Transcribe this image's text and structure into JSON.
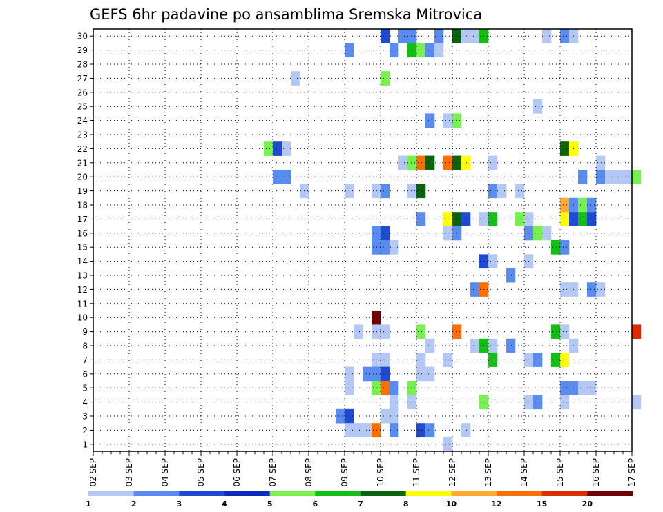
{
  "chart_data": {
    "type": "heatmap",
    "title": "GEFS 6hr padavine po ansamblima Sremska Mitrovica",
    "xlabel": "",
    "ylabel": "",
    "x_tick_labels": [
      "02 SEP",
      "03 SEP",
      "04 SEP",
      "05 SEP",
      "06 SEP",
      "07 SEP",
      "08 SEP",
      "09 SEP",
      "10 SEP",
      "11 SEP",
      "12 SEP",
      "13 SEP",
      "14 SEP",
      "15 SEP",
      "16 SEP",
      "17 SEP"
    ],
    "y_tick_labels": [
      "1",
      "2",
      "3",
      "4",
      "5",
      "6",
      "7",
      "8",
      "9",
      "10",
      "11",
      "12",
      "13",
      "14",
      "15",
      "16",
      "17",
      "18",
      "19",
      "20",
      "21",
      "22",
      "23",
      "24",
      "25",
      "26",
      "27",
      "28",
      "29",
      "30"
    ],
    "members": [
      1,
      30
    ],
    "time_steps_per_day": 4,
    "grid": true,
    "legend_position": "bottom",
    "color_scale": {
      "levels": [
        "1",
        "2",
        "3",
        "4",
        "5",
        "6",
        "7",
        "8",
        "10",
        "12",
        "15",
        "20"
      ],
      "colors": [
        "#b4c8f5",
        "#5a8cf0",
        "#1e4bd2",
        "#0a2dbe",
        "#78f050",
        "#14be14",
        "#0a640a",
        "#ffff00",
        "#ffaa32",
        "#ff6e00",
        "#dc2d00",
        "#6e0000"
      ]
    },
    "cells": [
      {
        "member": 30,
        "step": 32,
        "level": 3
      },
      {
        "member": 30,
        "step": 34,
        "level": 2
      },
      {
        "member": 30,
        "step": 35,
        "level": 2
      },
      {
        "member": 30,
        "step": 38,
        "level": 2
      },
      {
        "member": 30,
        "step": 40,
        "level": 7
      },
      {
        "member": 30,
        "step": 41,
        "level": 1
      },
      {
        "member": 30,
        "step": 42,
        "level": 1
      },
      {
        "member": 30,
        "step": 43,
        "level": 6
      },
      {
        "member": 30,
        "step": 50,
        "level": 1
      },
      {
        "member": 30,
        "step": 52,
        "level": 2
      },
      {
        "member": 30,
        "step": 53,
        "level": 1
      },
      {
        "member": 29,
        "step": 28,
        "level": 2
      },
      {
        "member": 29,
        "step": 33,
        "level": 2
      },
      {
        "member": 29,
        "step": 35,
        "level": 6
      },
      {
        "member": 29,
        "step": 36,
        "level": 5
      },
      {
        "member": 29,
        "step": 37,
        "level": 2
      },
      {
        "member": 29,
        "step": 38,
        "level": 1
      },
      {
        "member": 27,
        "step": 22,
        "level": 1
      },
      {
        "member": 27,
        "step": 32,
        "level": 5
      },
      {
        "member": 25,
        "step": 49,
        "level": 1
      },
      {
        "member": 24,
        "step": 37,
        "level": 2
      },
      {
        "member": 24,
        "step": 39,
        "level": 1
      },
      {
        "member": 24,
        "step": 40,
        "level": 5
      },
      {
        "member": 22,
        "step": 19,
        "level": 5
      },
      {
        "member": 22,
        "step": 20,
        "level": 3
      },
      {
        "member": 22,
        "step": 21,
        "level": 1
      },
      {
        "member": 22,
        "step": 52,
        "level": 7
      },
      {
        "member": 22,
        "step": 53,
        "level": 8
      },
      {
        "member": 21,
        "step": 34,
        "level": 1
      },
      {
        "member": 21,
        "step": 35,
        "level": 5
      },
      {
        "member": 21,
        "step": 36,
        "level": 12
      },
      {
        "member": 21,
        "step": 37,
        "level": 7
      },
      {
        "member": 21,
        "step": 39,
        "level": 12
      },
      {
        "member": 21,
        "step": 40,
        "level": 7
      },
      {
        "member": 21,
        "step": 41,
        "level": 8
      },
      {
        "member": 21,
        "step": 44,
        "level": 1
      },
      {
        "member": 21,
        "step": 56,
        "level": 1
      },
      {
        "member": 20,
        "step": 20,
        "level": 2
      },
      {
        "member": 20,
        "step": 21,
        "level": 2
      },
      {
        "member": 20,
        "step": 54,
        "level": 2
      },
      {
        "member": 20,
        "step": 56,
        "level": 2
      },
      {
        "member": 20,
        "step": 57,
        "level": 1
      },
      {
        "member": 20,
        "step": 58,
        "level": 1
      },
      {
        "member": 20,
        "step": 59,
        "level": 1
      },
      {
        "member": 20,
        "step": 60,
        "level": 5
      },
      {
        "member": 19,
        "step": 23,
        "level": 1
      },
      {
        "member": 19,
        "step": 28,
        "level": 1
      },
      {
        "member": 19,
        "step": 31,
        "level": 1
      },
      {
        "member": 19,
        "step": 32,
        "level": 2
      },
      {
        "member": 19,
        "step": 35,
        "level": 1
      },
      {
        "member": 19,
        "step": 36,
        "level": 7
      },
      {
        "member": 19,
        "step": 44,
        "level": 2
      },
      {
        "member": 19,
        "step": 45,
        "level": 1
      },
      {
        "member": 19,
        "step": 47,
        "level": 1
      },
      {
        "member": 18,
        "step": 52,
        "level": 10
      },
      {
        "member": 18,
        "step": 53,
        "level": 2
      },
      {
        "member": 18,
        "step": 54,
        "level": 5
      },
      {
        "member": 18,
        "step": 55,
        "level": 2
      },
      {
        "member": 17,
        "step": 36,
        "level": 2
      },
      {
        "member": 17,
        "step": 39,
        "level": 8
      },
      {
        "member": 17,
        "step": 40,
        "level": 7
      },
      {
        "member": 17,
        "step": 41,
        "level": 3
      },
      {
        "member": 17,
        "step": 43,
        "level": 1
      },
      {
        "member": 17,
        "step": 44,
        "level": 6
      },
      {
        "member": 17,
        "step": 47,
        "level": 5
      },
      {
        "member": 17,
        "step": 48,
        "level": 1
      },
      {
        "member": 17,
        "step": 52,
        "level": 8
      },
      {
        "member": 17,
        "step": 53,
        "level": 3
      },
      {
        "member": 17,
        "step": 54,
        "level": 6
      },
      {
        "member": 17,
        "step": 55,
        "level": 3
      },
      {
        "member": 16,
        "step": 31,
        "level": 2
      },
      {
        "member": 16,
        "step": 32,
        "level": 3
      },
      {
        "member": 16,
        "step": 39,
        "level": 1
      },
      {
        "member": 16,
        "step": 40,
        "level": 2
      },
      {
        "member": 16,
        "step": 48,
        "level": 2
      },
      {
        "member": 16,
        "step": 49,
        "level": 5
      },
      {
        "member": 16,
        "step": 50,
        "level": 1
      },
      {
        "member": 15,
        "step": 31,
        "level": 2
      },
      {
        "member": 15,
        "step": 32,
        "level": 2
      },
      {
        "member": 15,
        "step": 33,
        "level": 1
      },
      {
        "member": 15,
        "step": 51,
        "level": 6
      },
      {
        "member": 15,
        "step": 52,
        "level": 2
      },
      {
        "member": 14,
        "step": 43,
        "level": 3
      },
      {
        "member": 14,
        "step": 44,
        "level": 1
      },
      {
        "member": 14,
        "step": 48,
        "level": 1
      },
      {
        "member": 13,
        "step": 46,
        "level": 2
      },
      {
        "member": 12,
        "step": 42,
        "level": 2
      },
      {
        "member": 12,
        "step": 43,
        "level": 12
      },
      {
        "member": 12,
        "step": 52,
        "level": 1
      },
      {
        "member": 12,
        "step": 53,
        "level": 1
      },
      {
        "member": 12,
        "step": 55,
        "level": 2
      },
      {
        "member": 12,
        "step": 56,
        "level": 1
      },
      {
        "member": 10,
        "step": 31,
        "level": 20
      },
      {
        "member": 9,
        "step": 29,
        "level": 1
      },
      {
        "member": 9,
        "step": 31,
        "level": 1
      },
      {
        "member": 9,
        "step": 32,
        "level": 1
      },
      {
        "member": 9,
        "step": 36,
        "level": 5
      },
      {
        "member": 9,
        "step": 40,
        "level": 12
      },
      {
        "member": 9,
        "step": 51,
        "level": 6
      },
      {
        "member": 9,
        "step": 52,
        "level": 1
      },
      {
        "member": 9,
        "step": 60,
        "level": 15
      },
      {
        "member": 8,
        "step": 37,
        "level": 1
      },
      {
        "member": 8,
        "step": 42,
        "level": 1
      },
      {
        "member": 8,
        "step": 43,
        "level": 6
      },
      {
        "member": 8,
        "step": 44,
        "level": 1
      },
      {
        "member": 8,
        "step": 46,
        "level": 2
      },
      {
        "member": 8,
        "step": 53,
        "level": 1
      },
      {
        "member": 7,
        "step": 31,
        "level": 1
      },
      {
        "member": 7,
        "step": 32,
        "level": 1
      },
      {
        "member": 7,
        "step": 36,
        "level": 1
      },
      {
        "member": 7,
        "step": 39,
        "level": 1
      },
      {
        "member": 7,
        "step": 44,
        "level": 6
      },
      {
        "member": 7,
        "step": 48,
        "level": 1
      },
      {
        "member": 7,
        "step": 49,
        "level": 2
      },
      {
        "member": 7,
        "step": 51,
        "level": 6
      },
      {
        "member": 7,
        "step": 52,
        "level": 8
      },
      {
        "member": 6,
        "step": 28,
        "level": 1
      },
      {
        "member": 6,
        "step": 30,
        "level": 2
      },
      {
        "member": 6,
        "step": 31,
        "level": 2
      },
      {
        "member": 6,
        "step": 32,
        "level": 3
      },
      {
        "member": 6,
        "step": 36,
        "level": 1
      },
      {
        "member": 6,
        "step": 37,
        "level": 1
      },
      {
        "member": 5,
        "step": 28,
        "level": 1
      },
      {
        "member": 5,
        "step": 31,
        "level": 5
      },
      {
        "member": 5,
        "step": 32,
        "level": 12
      },
      {
        "member": 5,
        "step": 33,
        "level": 2
      },
      {
        "member": 5,
        "step": 35,
        "level": 5
      },
      {
        "member": 5,
        "step": 52,
        "level": 2
      },
      {
        "member": 5,
        "step": 53,
        "level": 2
      },
      {
        "member": 5,
        "step": 54,
        "level": 1
      },
      {
        "member": 5,
        "step": 55,
        "level": 1
      },
      {
        "member": 4,
        "step": 33,
        "level": 1
      },
      {
        "member": 4,
        "step": 35,
        "level": 1
      },
      {
        "member": 4,
        "step": 43,
        "level": 5
      },
      {
        "member": 4,
        "step": 48,
        "level": 1
      },
      {
        "member": 4,
        "step": 49,
        "level": 2
      },
      {
        "member": 4,
        "step": 52,
        "level": 1
      },
      {
        "member": 4,
        "step": 60,
        "level": 1
      },
      {
        "member": 3,
        "step": 27,
        "level": 2
      },
      {
        "member": 3,
        "step": 28,
        "level": 3
      },
      {
        "member": 3,
        "step": 32,
        "level": 1
      },
      {
        "member": 3,
        "step": 33,
        "level": 1
      },
      {
        "member": 2,
        "step": 28,
        "level": 1
      },
      {
        "member": 2,
        "step": 29,
        "level": 1
      },
      {
        "member": 2,
        "step": 30,
        "level": 1
      },
      {
        "member": 2,
        "step": 31,
        "level": 12
      },
      {
        "member": 2,
        "step": 33,
        "level": 2
      },
      {
        "member": 2,
        "step": 36,
        "level": 3
      },
      {
        "member": 2,
        "step": 37,
        "level": 2
      },
      {
        "member": 2,
        "step": 41,
        "level": 1
      },
      {
        "member": 1,
        "step": 39,
        "level": 1
      }
    ]
  }
}
